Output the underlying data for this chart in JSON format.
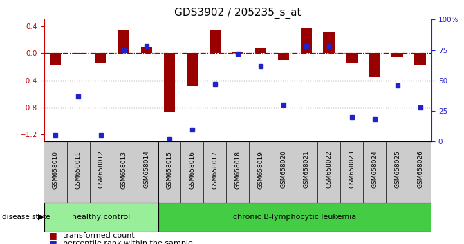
{
  "title": "GDS3902 / 205235_s_at",
  "samples": [
    "GSM658010",
    "GSM658011",
    "GSM658012",
    "GSM658013",
    "GSM658014",
    "GSM658015",
    "GSM658016",
    "GSM658017",
    "GSM658018",
    "GSM658019",
    "GSM658020",
    "GSM658021",
    "GSM658022",
    "GSM658023",
    "GSM658024",
    "GSM658025",
    "GSM658026"
  ],
  "red_bars": [
    -0.17,
    -0.02,
    -0.15,
    0.35,
    0.1,
    -0.87,
    -0.48,
    0.35,
    0.02,
    0.09,
    -0.1,
    0.38,
    0.31,
    -0.15,
    -0.35,
    -0.05,
    -0.18
  ],
  "percentiles": [
    5,
    37,
    5,
    75,
    78,
    2,
    10,
    47,
    72,
    62,
    30,
    78,
    78,
    20,
    18,
    46,
    28
  ],
  "healthy_count": 5,
  "ylim_left": [
    -1.3,
    0.5
  ],
  "ylim_right": [
    0,
    100
  ],
  "yticks_left": [
    -1.2,
    -0.8,
    -0.4,
    0.0,
    0.4
  ],
  "yticks_right": [
    0,
    25,
    50,
    75,
    100
  ],
  "bar_color": "#990000",
  "dot_color": "#2222CC",
  "healthy_color": "#99EE99",
  "leukemia_color": "#44CC44",
  "label_color_left": "#CC0000",
  "label_color_right": "#2222CC",
  "bg_xtick_color": "#CCCCCC",
  "group_label_healthy": "healthy control",
  "group_label_leukemia": "chronic B-lymphocytic leukemia",
  "disease_state_label": "disease state",
  "legend_red": "transformed count",
  "legend_blue": "percentile rank within the sample",
  "title_fontsize": 11,
  "tick_fontsize": 7.5,
  "bar_width": 0.5
}
